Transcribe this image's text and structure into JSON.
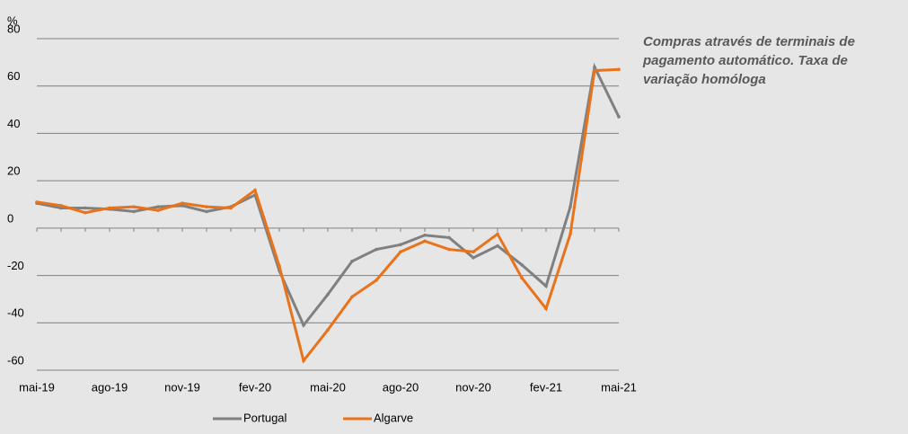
{
  "chart_data": {
    "type": "line",
    "title": "Compras através de terminais de pagamento automático. Taxa de variação homóloga",
    "y_label": "%",
    "categories": [
      "mai-19",
      null,
      null,
      "ago-19",
      null,
      null,
      "nov-19",
      null,
      null,
      "fev-20",
      null,
      null,
      "mai-20",
      null,
      null,
      "ago-20",
      null,
      null,
      "nov-20",
      null,
      null,
      "fev-21",
      null,
      null,
      "mai-21"
    ],
    "series": [
      {
        "name": "Portugal",
        "color": "#808080",
        "values": [
          10.5,
          8.5,
          8.5,
          8,
          7,
          9,
          9.5,
          7,
          9,
          14,
          -18,
          -41,
          -28,
          -14,
          -9,
          -7,
          -3,
          -4,
          -12.5,
          -7.5,
          -15.5,
          -24.5,
          9,
          68,
          47
        ]
      },
      {
        "name": "Algarve",
        "color": "#e8731a",
        "values": [
          11,
          9.5,
          6.5,
          8.5,
          9,
          7.5,
          10.5,
          9,
          8.5,
          16,
          -16,
          -56,
          -43,
          -29,
          -22,
          -10,
          -5.5,
          -9,
          -10,
          -2.5,
          -21,
          -34,
          -2.5,
          66.5,
          67
        ]
      }
    ],
    "ylim": [
      -60,
      80
    ],
    "yticks": [
      -60,
      -40,
      -20,
      0,
      20,
      40,
      60,
      80
    ],
    "grid": true,
    "legend": "bottom"
  }
}
